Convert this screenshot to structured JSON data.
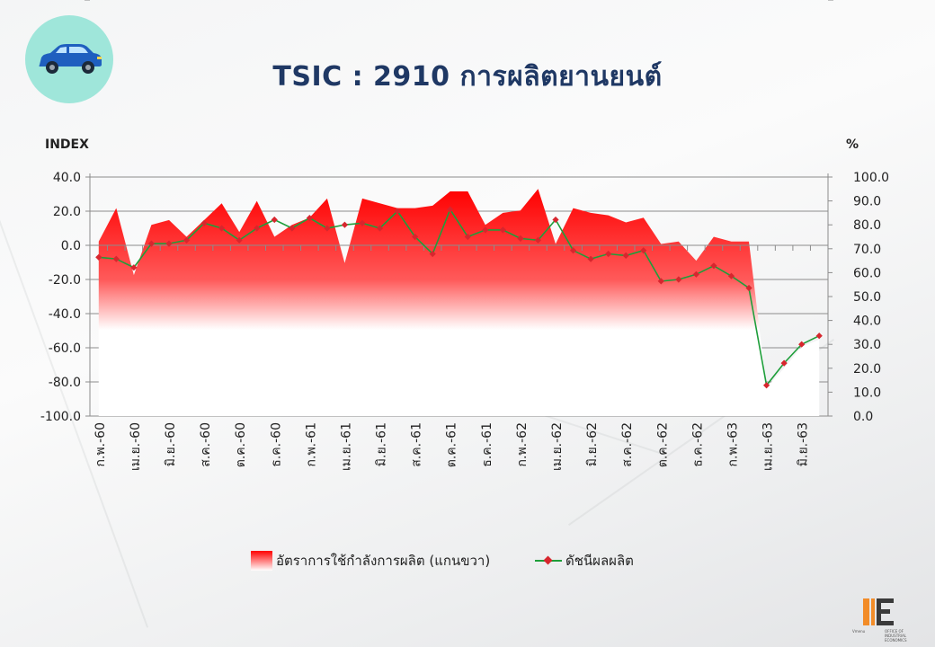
{
  "title": "TSIC : 2910 การผลิตยานยนต์",
  "left_unit": "INDEX",
  "right_unit": "%",
  "legend": {
    "area_label": "อัตราการใช้กำลังการผลิต (แกนขวา)",
    "line_label": "ดัชนีผลผลิต"
  },
  "logo": {
    "left_text": "Vmenu",
    "right_text": "OFFICE OF INDUSTRIAL ECONOMICS"
  },
  "colors": {
    "area_top": "#ff0000",
    "line": "#1e9e3a",
    "marker": "#d7262e",
    "title": "#1f3864",
    "badge": "#9fe6da"
  },
  "icons": {
    "badge": "car-icon"
  },
  "chart_data": {
    "type": "area+line",
    "categories": [
      "ก.พ.-60",
      "",
      "เม.ย.-60",
      "",
      "มิ.ย.-60",
      "",
      "ส.ค.-60",
      "",
      "ต.ค.-60",
      "",
      "ธ.ค.-60",
      "",
      "ก.พ.-61",
      "",
      "เม.ย.-61",
      "",
      "มิ.ย.-61",
      "",
      "ส.ค.-61",
      "",
      "ต.ค.-61",
      "",
      "ธ.ค.-61",
      "",
      "ก.พ.-62",
      "",
      "เม.ย.-62",
      "",
      "มิ.ย.-62",
      "",
      "ส.ค.-62",
      "",
      "ต.ค.-62",
      "",
      "ธ.ค.-62",
      "",
      "ก.พ.-63",
      "",
      "เม.ย.-63",
      "",
      "มิ.ย.-63",
      ""
    ],
    "y_left": {
      "label": "INDEX",
      "ticks": [
        "40.0",
        "20.0",
        "0.0",
        "-20.0",
        "-40.0",
        "-60.0",
        "-80.0",
        "-100.0"
      ],
      "min": -100,
      "max": 40
    },
    "y_right": {
      "label": "%",
      "ticks": [
        "100.0",
        "90.0",
        "80.0",
        "70.0",
        "60.0",
        "50.0",
        "40.0",
        "30.0",
        "20.0",
        "10.0",
        "0.0"
      ],
      "min": 0,
      "max": 100
    },
    "series": [
      {
        "name": "อัตราการใช้กำลังการผลิต (แกนขวา)",
        "axis": "right",
        "kind": "area",
        "values": [
          73,
          87,
          59,
          80,
          82,
          75,
          82,
          89,
          77,
          90,
          75,
          80,
          83,
          91,
          64,
          91,
          89,
          87,
          87,
          88,
          94,
          94,
          80,
          85,
          86,
          95,
          72,
          87,
          85,
          84,
          81,
          83,
          72,
          73,
          65,
          75,
          73,
          73,
          12,
          20,
          29,
          32
        ]
      },
      {
        "name": "ดัชนีผลผลิต",
        "axis": "left",
        "kind": "line",
        "values": [
          -7,
          -8,
          -13,
          1,
          1,
          3,
          13,
          10,
          3,
          10,
          15,
          10,
          16,
          10,
          12,
          13,
          10,
          20,
          5,
          -5,
          21,
          5,
          9,
          9,
          4,
          3,
          15,
          -3,
          -8,
          -5,
          -6,
          -3,
          -21,
          -20,
          -17,
          -12,
          -18,
          -25,
          -82,
          -69,
          -58,
          -53
        ]
      }
    ],
    "grid": "horizontal",
    "legend_position": "bottom"
  }
}
